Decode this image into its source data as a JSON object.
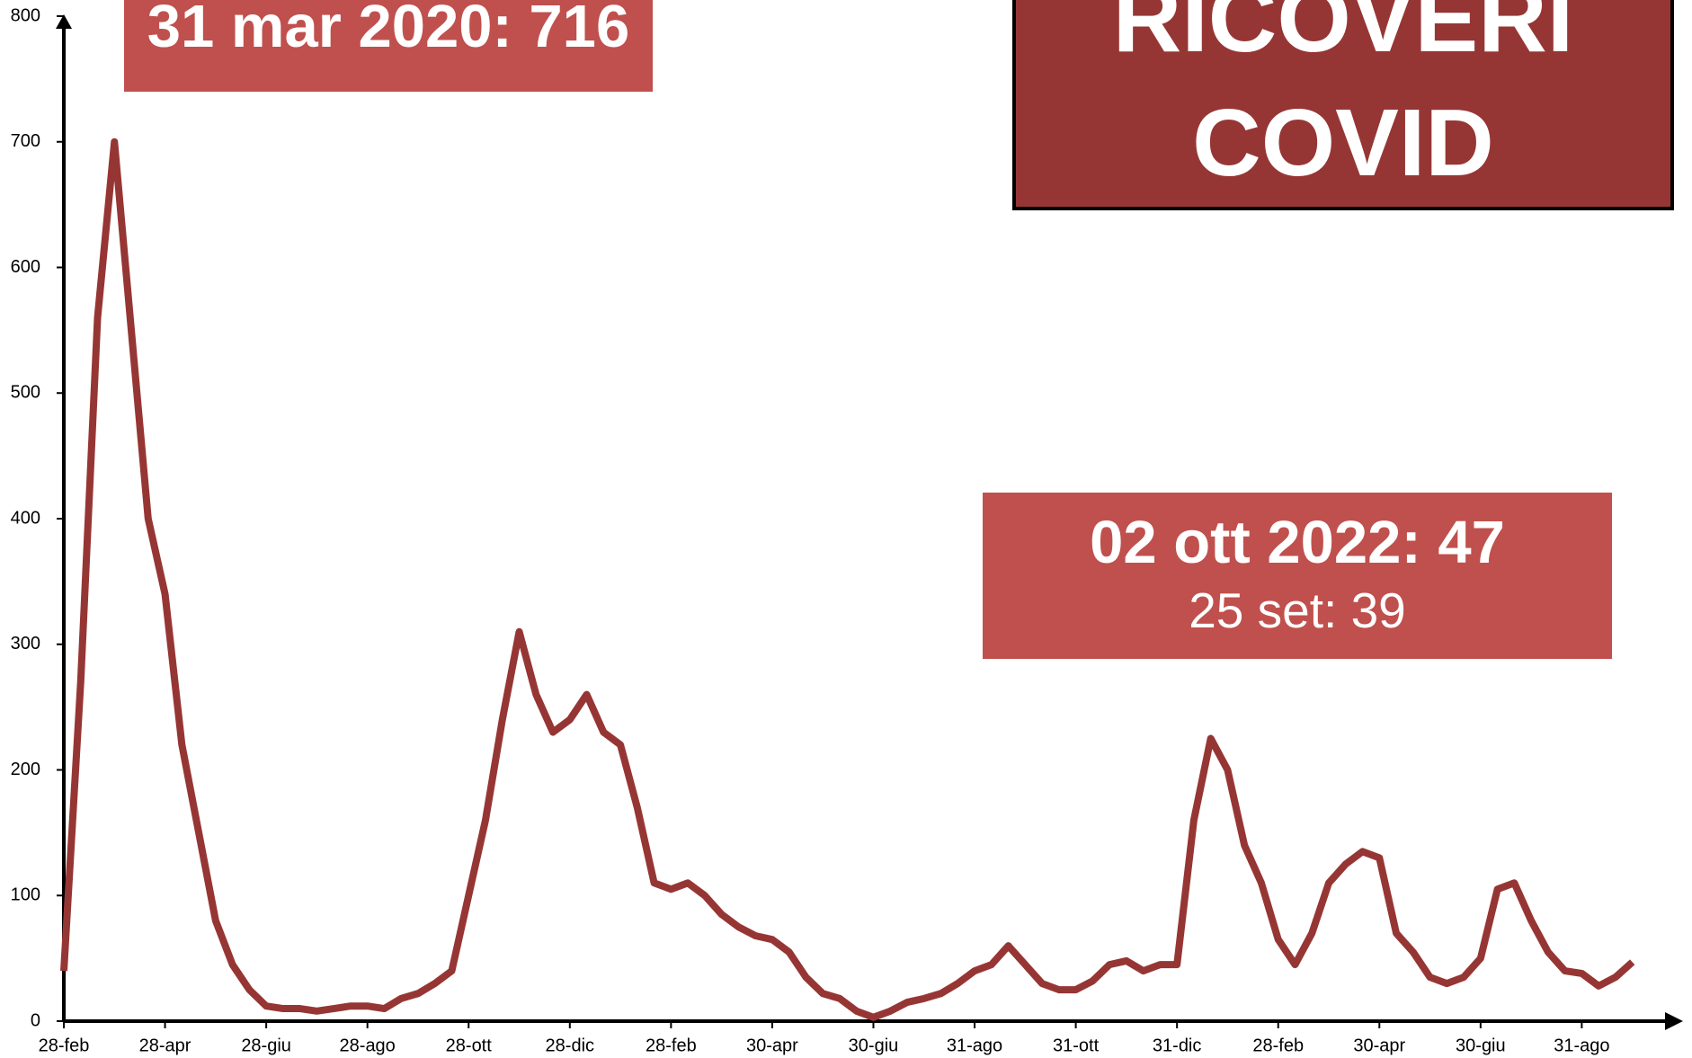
{
  "chart_data": {
    "type": "line",
    "title": "RICOVERI COVID",
    "annotations": [
      "31 mar 2020: 716",
      "02 ott 2022: 47",
      "25 set: 39"
    ],
    "categories": [
      "28-feb",
      null,
      null,
      null,
      null,
      null,
      "28-apr",
      null,
      null,
      null,
      null,
      null,
      "28-giu",
      null,
      null,
      null,
      null,
      null,
      "28-ago",
      null,
      null,
      null,
      null,
      null,
      "28-ott",
      null,
      null,
      null,
      null,
      null,
      "28-dic",
      null,
      null,
      null,
      null,
      null,
      "28-feb",
      null,
      null,
      null,
      null,
      null,
      "30-apr",
      null,
      null,
      null,
      null,
      null,
      "30-giu",
      null,
      null,
      null,
      null,
      null,
      "31-ago",
      null,
      null,
      null,
      null,
      null,
      "31-ott",
      null,
      null,
      null,
      null,
      null,
      "31-dic",
      null,
      null,
      null,
      null,
      null,
      "28-feb",
      null,
      null,
      null,
      null,
      null,
      "30-apr",
      null,
      null,
      null,
      null,
      null,
      "30-giu",
      null,
      null,
      null,
      null,
      null,
      "31-ago",
      null,
      null,
      null
    ],
    "series": [
      {
        "name": "Ricoveri",
        "color": "#963634",
        "values": [
          40,
          270,
          560,
          700,
          550,
          400,
          340,
          220,
          150,
          80,
          45,
          25,
          12,
          10,
          10,
          8,
          10,
          12,
          12,
          10,
          18,
          22,
          30,
          40,
          100,
          160,
          240,
          310,
          260,
          230,
          240,
          260,
          230,
          220,
          170,
          110,
          105,
          110,
          100,
          85,
          75,
          68,
          65,
          55,
          35,
          22,
          18,
          8,
          3,
          8,
          15,
          18,
          22,
          30,
          40,
          45,
          60,
          45,
          30,
          25,
          25,
          32,
          45,
          48,
          40,
          45,
          45,
          160,
          225,
          200,
          140,
          110,
          65,
          45,
          70,
          110,
          125,
          135,
          130,
          70,
          55,
          35,
          30,
          35,
          50,
          105,
          110,
          80,
          55,
          40,
          38,
          28,
          35,
          47
        ]
      }
    ],
    "ylim": [
      0,
      800
    ],
    "yticks": [
      0,
      100,
      200,
      300,
      400,
      500,
      600,
      700,
      800
    ]
  }
}
